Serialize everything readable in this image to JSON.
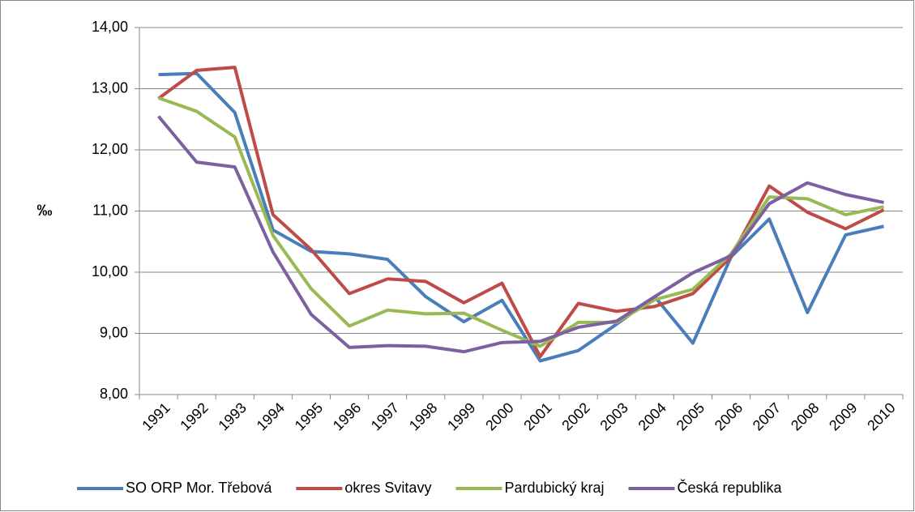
{
  "chart_data": {
    "type": "line",
    "ylabel": "‰",
    "categories": [
      "1991",
      "1992",
      "1993",
      "1994",
      "1995",
      "1996",
      "1997",
      "1998",
      "1999",
      "2000",
      "2001",
      "2002",
      "2003",
      "2004",
      "2005",
      "2006",
      "2007",
      "2008",
      "2009",
      "2010"
    ],
    "series": [
      {
        "name": "SO ORP Mor. Třebová",
        "color": "#4a7ebb",
        "values": [
          13.23,
          13.25,
          12.61,
          10.69,
          10.34,
          10.3,
          10.21,
          9.6,
          9.19,
          9.54,
          8.55,
          8.72,
          9.15,
          9.6,
          8.84,
          10.25,
          10.87,
          9.34,
          10.61,
          10.75
        ]
      },
      {
        "name": "okres Svitavy",
        "color": "#be4b48",
        "values": [
          12.84,
          13.3,
          13.35,
          10.94,
          10.37,
          9.65,
          9.89,
          9.85,
          9.5,
          9.82,
          8.62,
          9.49,
          9.36,
          9.44,
          9.65,
          10.25,
          11.41,
          10.98,
          10.71,
          11.02
        ]
      },
      {
        "name": "Pardubický kraj",
        "color": "#98b954",
        "values": [
          12.85,
          12.63,
          12.21,
          10.6,
          9.73,
          9.12,
          9.38,
          9.32,
          9.33,
          9.05,
          8.79,
          9.18,
          9.18,
          9.55,
          9.72,
          10.3,
          11.23,
          11.2,
          10.94,
          11.07
        ]
      },
      {
        "name": "Česká republika",
        "color": "#7d60a0",
        "values": [
          12.55,
          11.8,
          11.72,
          10.33,
          9.31,
          8.77,
          8.8,
          8.79,
          8.7,
          8.85,
          8.87,
          9.1,
          9.2,
          9.6,
          9.99,
          10.27,
          11.12,
          11.46,
          11.27,
          11.14
        ]
      }
    ],
    "ylim": [
      8,
      14
    ],
    "yticks": [
      {
        "value": 8,
        "label": "8,00"
      },
      {
        "value": 9,
        "label": "9,00"
      },
      {
        "value": 10,
        "label": "10,00"
      },
      {
        "value": 11,
        "label": "11,00"
      },
      {
        "value": 12,
        "label": "12,00"
      },
      {
        "value": 13,
        "label": "13,00"
      },
      {
        "value": 14,
        "label": "14,00"
      }
    ],
    "grid": true,
    "legend": "bottom"
  }
}
